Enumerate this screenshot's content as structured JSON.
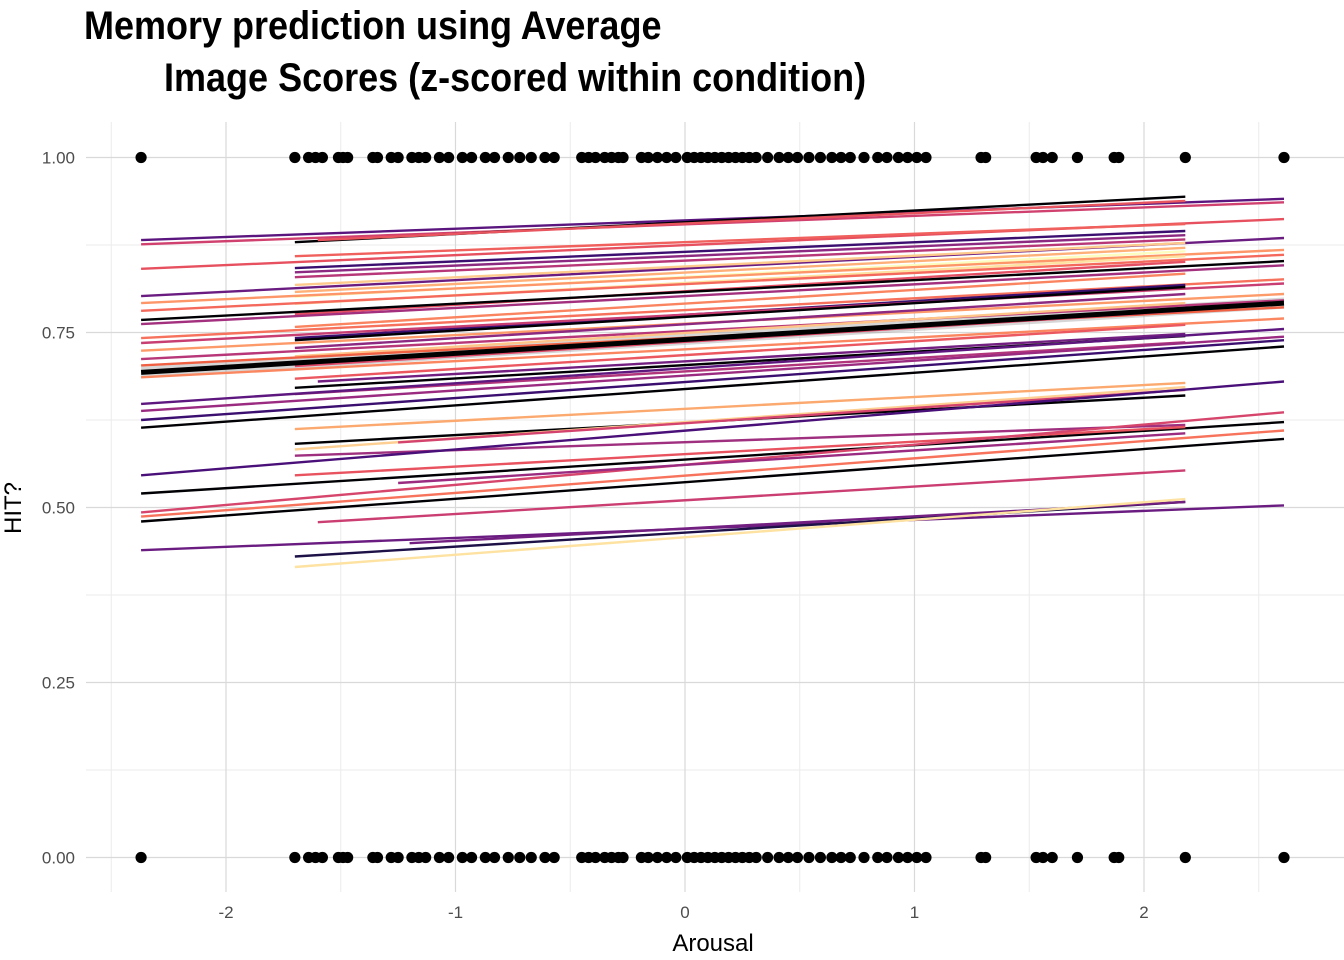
{
  "chart_data": {
    "type": "scatter",
    "title": "Memory prediction using Average\n        Image Scores (z-scored within condition)",
    "xlabel": "Arousal",
    "ylabel": "HIT?",
    "xlim": [
      -2.5,
      2.7
    ],
    "ylim": [
      -0.05,
      1.05
    ],
    "x_ticks": [
      "-2",
      "-1",
      "0",
      "1",
      "2"
    ],
    "x_tick_values": [
      -2,
      -1,
      0,
      1,
      2
    ],
    "y_ticks": [
      "0.00",
      "0.25",
      "0.50",
      "0.75",
      "1.00"
    ],
    "y_tick_values": [
      0,
      0.25,
      0.5,
      0.75,
      1.0
    ],
    "grid": true,
    "legend": "none",
    "points_x": [
      -2.37,
      -1.7,
      -1.64,
      -1.61,
      -1.58,
      -1.51,
      -1.49,
      -1.47,
      -1.36,
      -1.34,
      -1.28,
      -1.25,
      -1.19,
      -1.16,
      -1.13,
      -1.07,
      -1.03,
      -0.97,
      -0.93,
      -0.87,
      -0.83,
      -0.77,
      -0.72,
      -0.67,
      -0.61,
      -0.57,
      -0.45,
      -0.42,
      -0.39,
      -0.35,
      -0.32,
      -0.29,
      -0.27,
      -0.19,
      -0.16,
      -0.12,
      -0.08,
      -0.04,
      0.01,
      0.04,
      0.07,
      0.1,
      0.13,
      0.16,
      0.19,
      0.22,
      0.25,
      0.28,
      0.31,
      0.36,
      0.41,
      0.45,
      0.49,
      0.54,
      0.59,
      0.64,
      0.68,
      0.72,
      0.78,
      0.84,
      0.88,
      0.93,
      0.97,
      1.01,
      1.05,
      1.29,
      1.31,
      1.53,
      1.56,
      1.6,
      1.71,
      1.87,
      1.89,
      2.18,
      2.61
    ],
    "points_y": [
      0,
      1
    ],
    "fit_lines": [
      {
        "x": [
          -2.37,
          2.61
        ],
        "y": [
          0.693,
          0.792
        ],
        "color": "#000000",
        "width": 5,
        "ribbon": 0.008
      },
      {
        "x": [
          -2.37,
          2.61
        ],
        "y": [
          0.882,
          0.941
        ],
        "color": "#5a167e"
      },
      {
        "x": [
          -2.37,
          2.61
        ],
        "y": [
          0.876,
          0.936
        ],
        "color": "#d0416f"
      },
      {
        "x": [
          -1.7,
          2.18
        ],
        "y": [
          0.879,
          0.944
        ],
        "color": "#000004"
      },
      {
        "x": [
          -1.6,
          2.18
        ],
        "y": [
          0.882,
          0.938
        ],
        "color": "#e8555e"
      },
      {
        "x": [
          -2.37,
          2.61
        ],
        "y": [
          0.841,
          0.912
        ],
        "color": "#e6505f"
      },
      {
        "x": [
          -1.7,
          2.18
        ],
        "y": [
          0.859,
          0.905
        ],
        "color": "#f0605d"
      },
      {
        "x": [
          -1.7,
          2.18
        ],
        "y": [
          0.842,
          0.895
        ],
        "color": "#3b0f70"
      },
      {
        "x": [
          -1.7,
          2.18
        ],
        "y": [
          0.836,
          0.889
        ],
        "color": "#8c2981"
      },
      {
        "x": [
          -1.7,
          2.18
        ],
        "y": [
          0.829,
          0.883
        ],
        "color": "#b73779"
      },
      {
        "x": [
          -2.37,
          2.61
        ],
        "y": [
          0.802,
          0.885
        ],
        "color": "#6a1c81"
      },
      {
        "x": [
          -1.7,
          2.18
        ],
        "y": [
          0.818,
          0.878
        ],
        "color": "#fec98d"
      },
      {
        "x": [
          -1.7,
          2.18
        ],
        "y": [
          0.808,
          0.871
        ],
        "color": "#feb078"
      },
      {
        "x": [
          -1.7,
          2.18
        ],
        "y": [
          0.801,
          0.866
        ],
        "color": "#fcfdbf"
      },
      {
        "x": [
          -2.37,
          2.61
        ],
        "y": [
          0.792,
          0.868
        ],
        "color": "#fd9668"
      },
      {
        "x": [
          -1.7,
          2.18
        ],
        "y": [
          0.791,
          0.859
        ],
        "color": "#fde2a1"
      },
      {
        "x": [
          -2.37,
          2.61
        ],
        "y": [
          0.781,
          0.861
        ],
        "color": "#f4695c"
      },
      {
        "x": [
          -1.7,
          2.18
        ],
        "y": [
          0.776,
          0.851
        ],
        "color": "#e44f64"
      },
      {
        "x": [
          -2.37,
          2.61
        ],
        "y": [
          0.768,
          0.852
        ],
        "color": "#000004"
      },
      {
        "x": [
          -2.37,
          2.61
        ],
        "y": [
          0.762,
          0.846
        ],
        "color": "#a3307e"
      },
      {
        "x": [
          -1.7,
          2.18
        ],
        "y": [
          0.758,
          0.834
        ],
        "color": "#fa8460"
      },
      {
        "x": [
          -2.37,
          2.61
        ],
        "y": [
          0.742,
          0.826
        ],
        "color": "#f7725c"
      },
      {
        "x": [
          -1.7,
          2.18
        ],
        "y": [
          0.742,
          0.818
        ],
        "color": "#3b0f70"
      },
      {
        "x": [
          -2.37,
          2.61
        ],
        "y": [
          0.735,
          0.82
        ],
        "color": "#c83e73"
      },
      {
        "x": [
          -1.7,
          2.18
        ],
        "y": [
          0.739,
          0.815
        ],
        "color": "#000004"
      },
      {
        "x": [
          -2.37,
          2.61
        ],
        "y": [
          0.724,
          0.805
        ],
        "color": "#fd9a6a"
      },
      {
        "x": [
          -1.7,
          2.18
        ],
        "y": [
          0.728,
          0.805
        ],
        "color": "#8c2981"
      },
      {
        "x": [
          -2.37,
          2.61
        ],
        "y": [
          0.712,
          0.796
        ],
        "color": "#b73779"
      },
      {
        "x": [
          -1.7,
          2.18
        ],
        "y": [
          0.716,
          0.792
        ],
        "color": "#fec488"
      },
      {
        "x": [
          -2.37,
          2.61
        ],
        "y": [
          0.703,
          0.786
        ],
        "color": "#f06043"
      },
      {
        "x": [
          -1.7,
          2.18
        ],
        "y": [
          0.702,
          0.781
        ],
        "color": "#de4968"
      },
      {
        "x": [
          -2.37,
          2.61
        ],
        "y": [
          0.686,
          0.77
        ],
        "color": "#fb8761"
      },
      {
        "x": [
          -1.7,
          2.18
        ],
        "y": [
          0.684,
          0.761
        ],
        "color": "#ec5860"
      },
      {
        "x": [
          -1.6,
          2.18
        ],
        "y": [
          0.68,
          0.748
        ],
        "color": "#721f81"
      },
      {
        "x": [
          -1.7,
          2.18
        ],
        "y": [
          0.671,
          0.745
        ],
        "color": "#000004"
      },
      {
        "x": [
          -1.7,
          2.18
        ],
        "y": [
          0.662,
          0.736
        ],
        "color": "#b1357b"
      },
      {
        "x": [
          -2.37,
          2.61
        ],
        "y": [
          0.648,
          0.755
        ],
        "color": "#5d177f"
      },
      {
        "x": [
          -2.37,
          2.61
        ],
        "y": [
          0.638,
          0.744
        ],
        "color": "#9a2b80"
      },
      {
        "x": [
          -2.37,
          2.61
        ],
        "y": [
          0.625,
          0.739
        ],
        "color": "#3b0f70"
      },
      {
        "x": [
          -2.37,
          2.61
        ],
        "y": [
          0.614,
          0.73
        ],
        "color": "#000004"
      },
      {
        "x": [
          -1.7,
          2.18
        ],
        "y": [
          0.612,
          0.678
        ],
        "color": "#fba96f"
      },
      {
        "x": [
          -1.7,
          2.18
        ],
        "y": [
          0.591,
          0.66
        ],
        "color": "#000004"
      },
      {
        "x": [
          -1.7,
          2.18
        ],
        "y": [
          0.583,
          0.672
        ],
        "color": "#fecf92"
      },
      {
        "x": [
          -1.25,
          2.18
        ],
        "y": [
          0.593,
          0.668
        ],
        "color": "#d3436e"
      },
      {
        "x": [
          -1.7,
          2.18
        ],
        "y": [
          0.574,
          0.618
        ],
        "color": "#9f2f7f"
      },
      {
        "x": [
          -2.37,
          2.61
        ],
        "y": [
          0.546,
          0.68
        ],
        "color": "#4a1079"
      },
      {
        "x": [
          -2.37,
          2.61
        ],
        "y": [
          0.52,
          0.622
        ],
        "color": "#000004"
      },
      {
        "x": [
          -1.7,
          2.18
        ],
        "y": [
          0.546,
          0.615
        ],
        "color": "#e8535f"
      },
      {
        "x": [
          -2.37,
          2.61
        ],
        "y": [
          0.493,
          0.636
        ],
        "color": "#d6456c"
      },
      {
        "x": [
          -2.37,
          2.61
        ],
        "y": [
          0.487,
          0.61
        ],
        "color": "#f7735c"
      },
      {
        "x": [
          -2.37,
          2.61
        ],
        "y": [
          0.48,
          0.598
        ],
        "color": "#000004"
      },
      {
        "x": [
          -1.25,
          2.18
        ],
        "y": [
          0.535,
          0.606
        ],
        "color": "#9a2b80"
      },
      {
        "x": [
          -1.6,
          2.18
        ],
        "y": [
          0.479,
          0.553
        ],
        "color": "#cb3e71"
      },
      {
        "x": [
          -2.37,
          2.61
        ],
        "y": [
          0.439,
          0.503
        ],
        "color": "#6a1c81"
      },
      {
        "x": [
          -1.7,
          2.18
        ],
        "y": [
          0.43,
          0.508
        ],
        "color": "#1d1147"
      },
      {
        "x": [
          -1.2,
          2.18
        ],
        "y": [
          0.449,
          0.508
        ],
        "color": "#721f81"
      },
      {
        "x": [
          -1.7,
          2.18
        ],
        "y": [
          0.415,
          0.512
        ],
        "color": "#fde2a1"
      }
    ]
  }
}
